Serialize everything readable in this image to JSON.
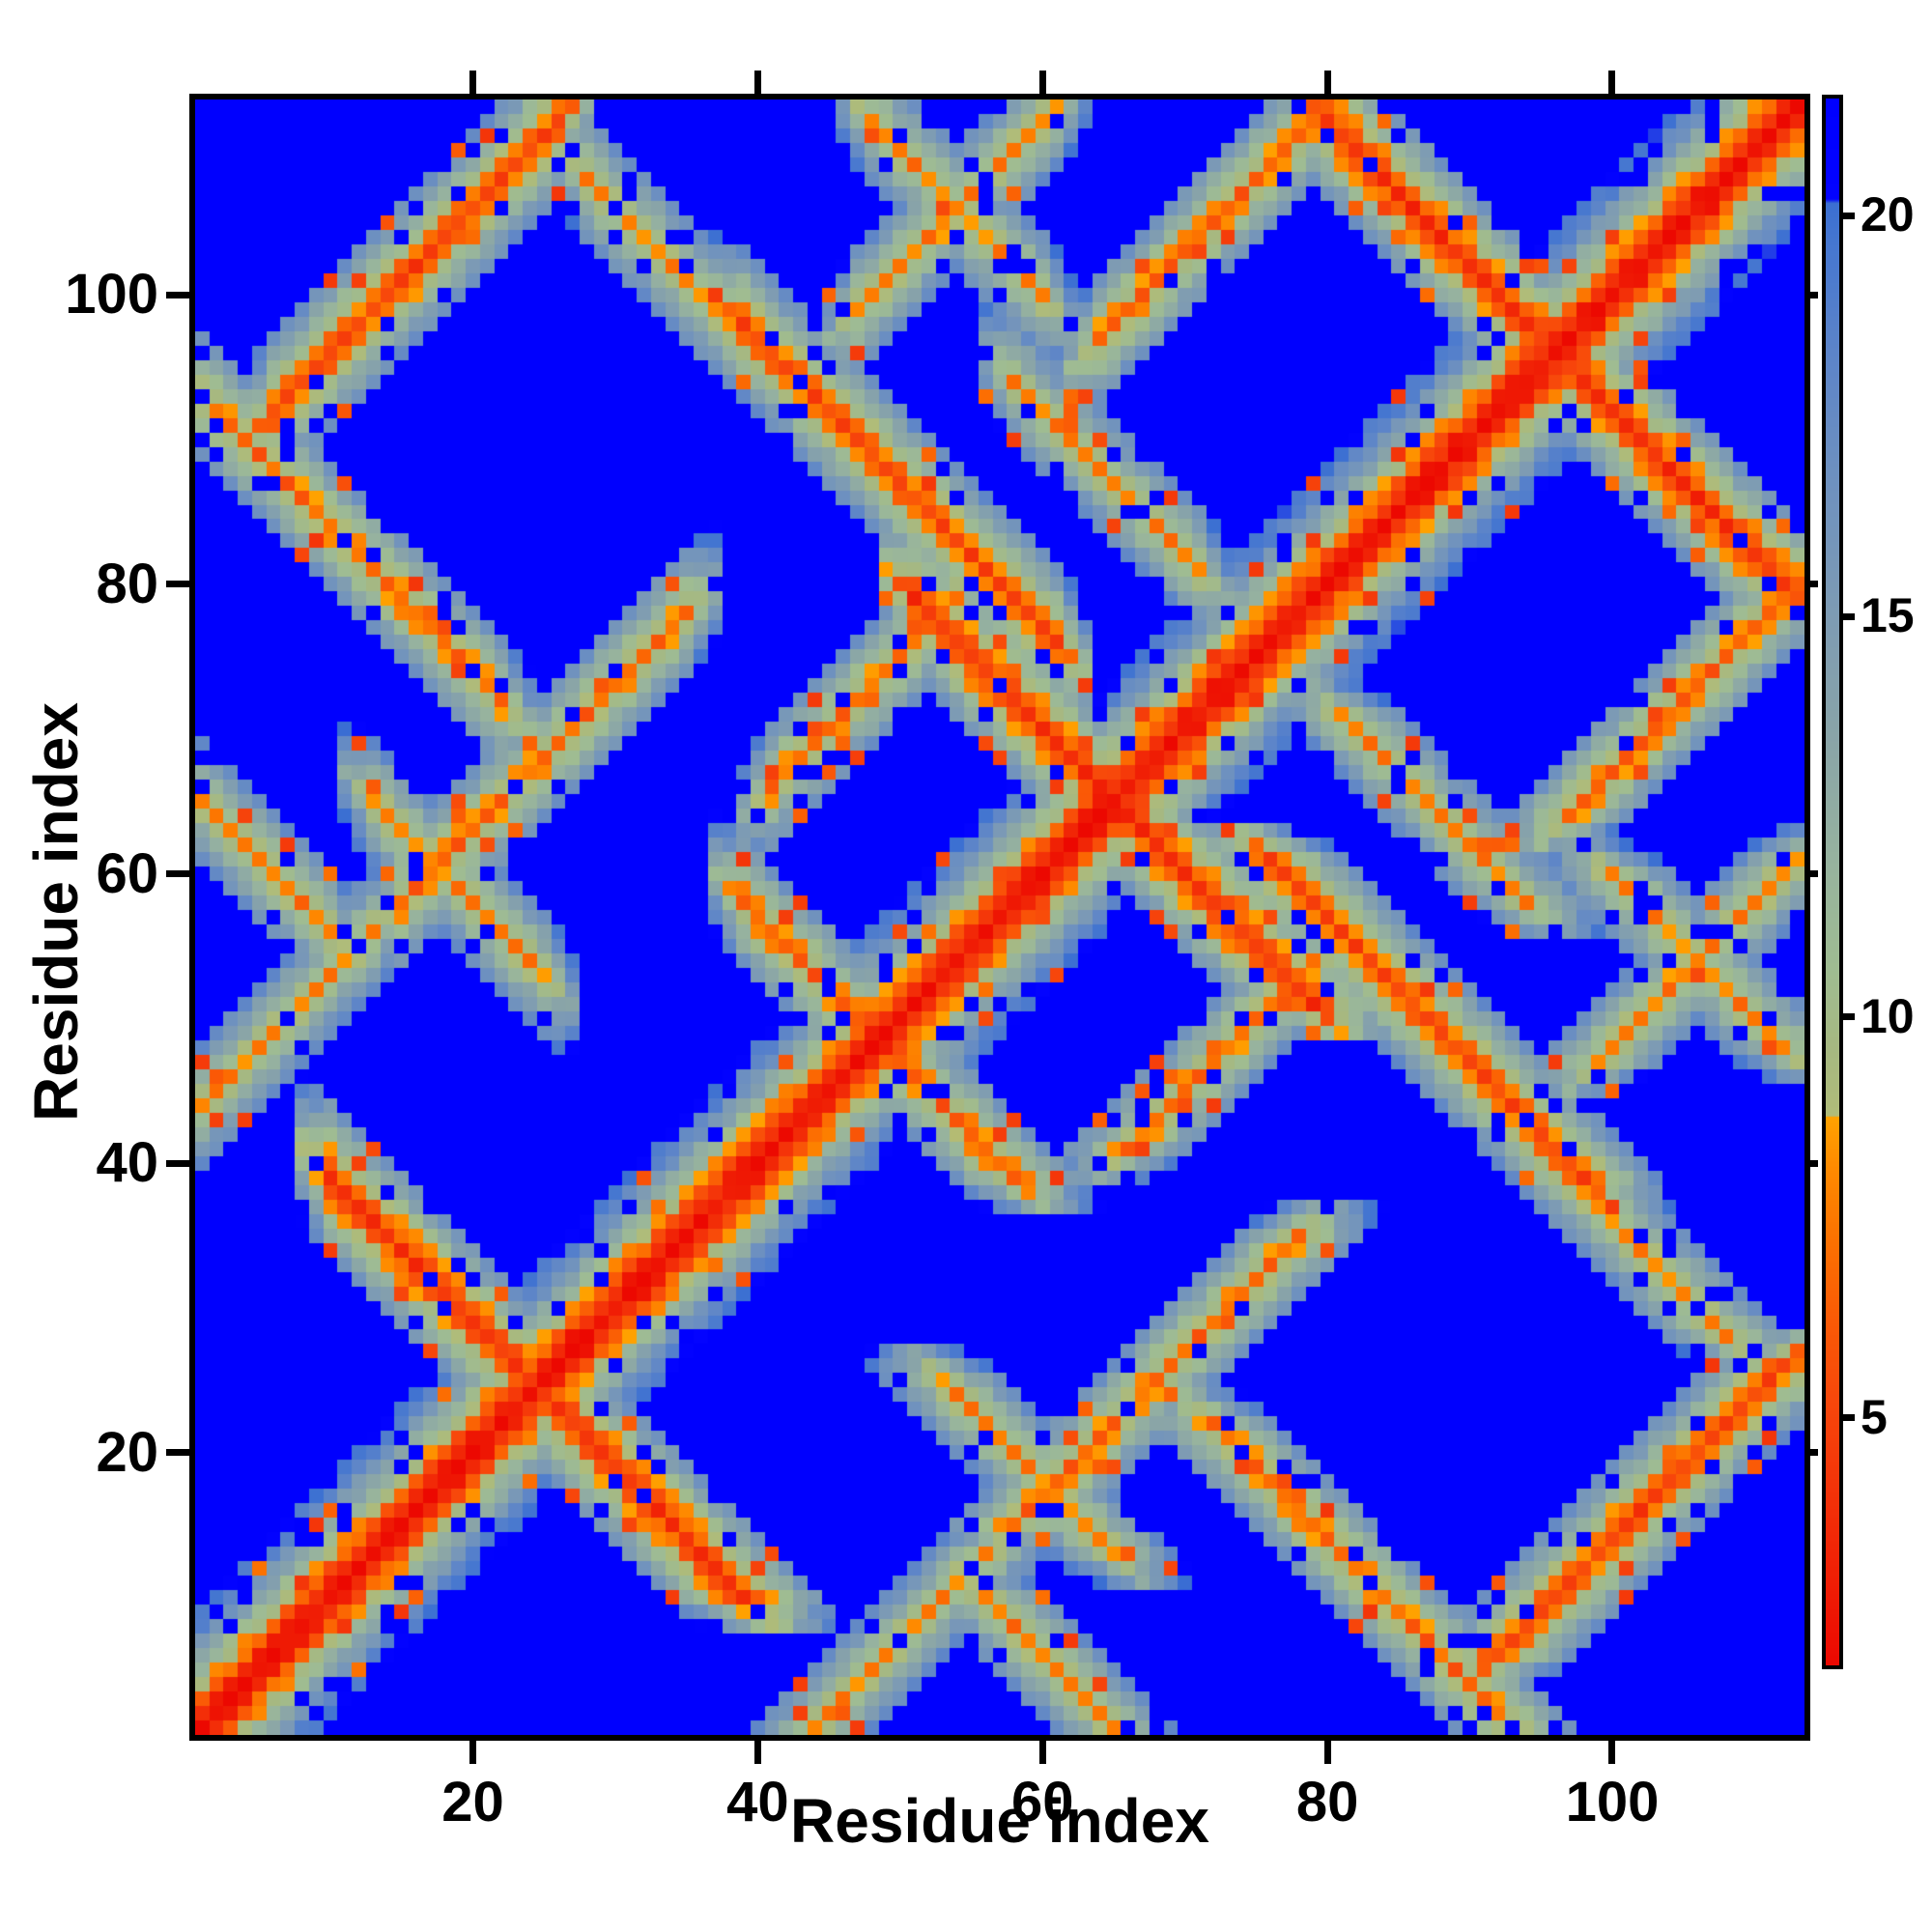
{
  "figure": {
    "background_color": "#ffffff",
    "frame_color": "#000000"
  },
  "chart_data": {
    "type": "heatmap",
    "title": "",
    "xlabel": "Residue index",
    "ylabel": "Residue index",
    "n_residues": 113,
    "x_range": [
      1,
      113
    ],
    "y_range": [
      1,
      113
    ],
    "x_ticks": [
      20,
      40,
      60,
      80,
      100
    ],
    "y_ticks": [
      20,
      40,
      60,
      80,
      100
    ],
    "grid": false,
    "legend_position": "none",
    "colorbar": {
      "side": "right",
      "ticks": [
        5,
        10,
        15,
        20
      ],
      "vmin": 1.9,
      "vmax": 21.45
    },
    "colormap_stops": [
      [
        1.9,
        "#ec0801"
      ],
      [
        3.0,
        "#f01f05"
      ],
      [
        4.2,
        "#f43509"
      ],
      [
        5.2,
        "#f7470b"
      ],
      [
        6.2,
        "#fa5a06"
      ],
      [
        7.2,
        "#fc7101"
      ],
      [
        8.1,
        "#fe8a00"
      ],
      [
        8.75,
        "#ffa200"
      ],
      [
        8.76,
        "#b0bc79"
      ],
      [
        9.6,
        "#a6b881"
      ],
      [
        10.6,
        "#9fbc92"
      ],
      [
        12.0,
        "#96b29f"
      ],
      [
        13.5,
        "#89a4a8"
      ],
      [
        15.2,
        "#7c9ab5"
      ],
      [
        16.8,
        "#6d90c0"
      ],
      [
        18.3,
        "#5c84c9"
      ],
      [
        19.6,
        "#4677d0"
      ],
      [
        20.15,
        "#3b6fd2"
      ],
      [
        20.2,
        "#0303ff"
      ],
      [
        21.45,
        "#0000fe"
      ]
    ],
    "description": "Symmetric residue-residue distance map (113x113). Red = short distance (main diagonal), orange/green stripes = secondary-structure contacts, saturated blue = distances beyond ~20. Matrix values are estimated from the figure and regenerated from the stripe model below.",
    "matrix_model": {
      "default_distance": 21.45,
      "backbone_profile": [
        2.0,
        3.4,
        6.3,
        8.8,
        11.2,
        13.5,
        15.8,
        18.0,
        19.8
      ],
      "perp_slope": 2.4,
      "end_taper": 2.5,
      "stripes": [
        {
          "type": "anti",
          "c": 47,
          "i0": 9,
          "i1": 23,
          "d0": 4.0,
          "hw": 5
        },
        {
          "type": "anti",
          "c": 128,
          "i0": 50,
          "i1": 63,
          "d0": 4.0,
          "hw": 5
        },
        {
          "type": "anti",
          "c": 190,
          "i0": 79,
          "i1": 94,
          "d0": 4.0,
          "hw": 5
        },
        {
          "type": "anti",
          "c": 135,
          "i0": 38,
          "i1": 60,
          "d0": 5.0,
          "hw": 5
        },
        {
          "type": "anti",
          "c": 134,
          "i0": 27,
          "i1": 38,
          "d0": 7.4,
          "hw": 4
        },
        {
          "type": "anti",
          "c": 92,
          "i0": 0,
          "i1": 21,
          "d0": 6.4,
          "hw": 4
        },
        {
          "type": "anti",
          "c": 158,
          "i0": 47,
          "i1": 59,
          "d0": 7.6,
          "hw": 4
        },
        {
          "type": "para",
          "c": 86,
          "i0": 5,
          "i1": 25,
          "d0": 4.8,
          "hw": 5
        },
        {
          "type": "para",
          "c": 33,
          "i0": 63,
          "i1": 79,
          "d0": 6.4,
          "hw": 4
        },
        {
          "type": "para",
          "c": 25,
          "i0": 40,
          "i1": 53,
          "d0": 6.8,
          "hw": 4
        },
        {
          "type": "anti",
          "c": 95,
          "i0": 38,
          "i1": 46,
          "d0": 6.2,
          "hw": 4
        },
        {
          "type": "anti",
          "c": 150,
          "i0": 57,
          "i1": 70,
          "d0": 7.6,
          "hw": 4
        },
        {
          "type": "para",
          "c": 43,
          "i0": 14,
          "i1": 34,
          "d0": 6.6,
          "hw": 4
        },
        {
          "type": "anti",
          "c": 64,
          "i0": 0,
          "i1": 9,
          "d0": 7.4,
          "hw": 4
        },
        {
          "type": "para",
          "c": 43,
          "i0": 0,
          "i1": 12,
          "d0": 7.8,
          "hw": 4
        },
        {
          "type": "para",
          "c": 52,
          "i0": 46,
          "i1": 60,
          "d0": 7.4,
          "hw": 4
        },
        {
          "type": "anti",
          "c": 76,
          "i0": 12,
          "i1": 24,
          "d0": 7.6,
          "hw": 4
        }
      ],
      "noise": {
        "seed": 7,
        "jitter": 2.2,
        "orange_speck_p": 0.04,
        "blue_speck_p": 0.075,
        "hole_p": 0.05
      }
    }
  }
}
